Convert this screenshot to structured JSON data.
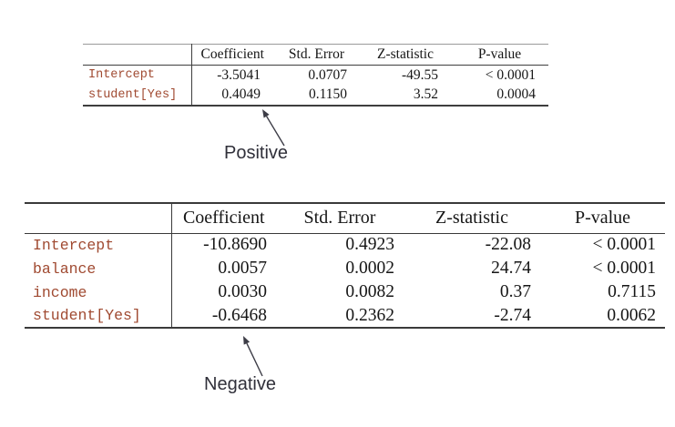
{
  "colors": {
    "background": "#ffffff",
    "table_text": "#161616",
    "row_label_accent": "#a04a31",
    "rule_dark": "#3a3a3a",
    "rule_light": "#9b9b9b",
    "annotation": "#30303a"
  },
  "tables": [
    {
      "name": "logistic-regression-student-only",
      "headers": [
        "Coefficient",
        "Std. Error",
        "Z-statistic",
        "P-value"
      ],
      "rows": [
        {
          "label": "Intercept",
          "values": [
            "-3.5041",
            "0.0707",
            "-49.55",
            "< 0.0001"
          ]
        },
        {
          "label": "student[Yes]",
          "values": [
            "0.4049",
            "0.1150",
            "3.52",
            "0.0004"
          ]
        }
      ],
      "annotation": {
        "label": "Positive",
        "points_to": "0.4049"
      }
    },
    {
      "name": "logistic-regression-full-model",
      "headers": [
        "Coefficient",
        "Std. Error",
        "Z-statistic",
        "P-value"
      ],
      "rows": [
        {
          "label": "Intercept",
          "values": [
            "-10.8690",
            "0.4923",
            "-22.08",
            "< 0.0001"
          ]
        },
        {
          "label": "balance",
          "values": [
            "0.0057",
            "0.0002",
            "24.74",
            "< 0.0001"
          ]
        },
        {
          "label": "income",
          "values": [
            "0.0030",
            "0.0082",
            "0.37",
            "0.7115"
          ]
        },
        {
          "label": "student[Yes]",
          "values": [
            "-0.6468",
            "0.2362",
            "-2.74",
            "0.0062"
          ]
        }
      ],
      "annotation": {
        "label": "Negative",
        "points_to": "-0.6468"
      }
    }
  ]
}
